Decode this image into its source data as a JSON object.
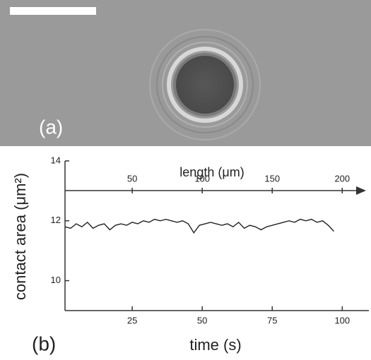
{
  "panel_a": {
    "label": "(a)"
  },
  "chart_data": {
    "type": "line",
    "panel_label": "(b)",
    "xlabel": "time (s)",
    "ylabel": "contact area (μm²)",
    "x2label": "length (μm)",
    "x": [
      1,
      3,
      5,
      7,
      9,
      11,
      13,
      15,
      17,
      19,
      21,
      23,
      25,
      27,
      29,
      31,
      33,
      35,
      37,
      39,
      41,
      43,
      45,
      47,
      49,
      51,
      53,
      55,
      57,
      59,
      61,
      63,
      65,
      67,
      69,
      71,
      73,
      75,
      77,
      79,
      81,
      83,
      85,
      87,
      89,
      91,
      93,
      95,
      97
    ],
    "series": [
      {
        "color": "#222222",
        "values": [
          11.8,
          11.75,
          11.9,
          11.8,
          11.95,
          11.75,
          11.85,
          11.9,
          11.7,
          11.85,
          11.9,
          11.85,
          11.95,
          11.9,
          12.0,
          11.95,
          12.05,
          12.0,
          12.05,
          12.0,
          11.95,
          12.0,
          11.9,
          11.6,
          11.85,
          11.9,
          11.95,
          11.9,
          11.85,
          11.9,
          11.8,
          11.95,
          11.75,
          11.85,
          11.8,
          11.7,
          11.8,
          11.85,
          11.9,
          11.95,
          12.0,
          11.95,
          12.05,
          12.0,
          12.05,
          11.95,
          12.0,
          11.85,
          11.65
        ]
      }
    ],
    "xlim": [
      1,
      108
    ],
    "ylim": [
      9,
      14
    ],
    "xticks": [
      25,
      50,
      75,
      100
    ],
    "yticks": [
      10,
      12,
      14
    ],
    "x2lim": [
      2,
      216
    ],
    "x2ticks": [
      50,
      100,
      150,
      200
    ]
  }
}
